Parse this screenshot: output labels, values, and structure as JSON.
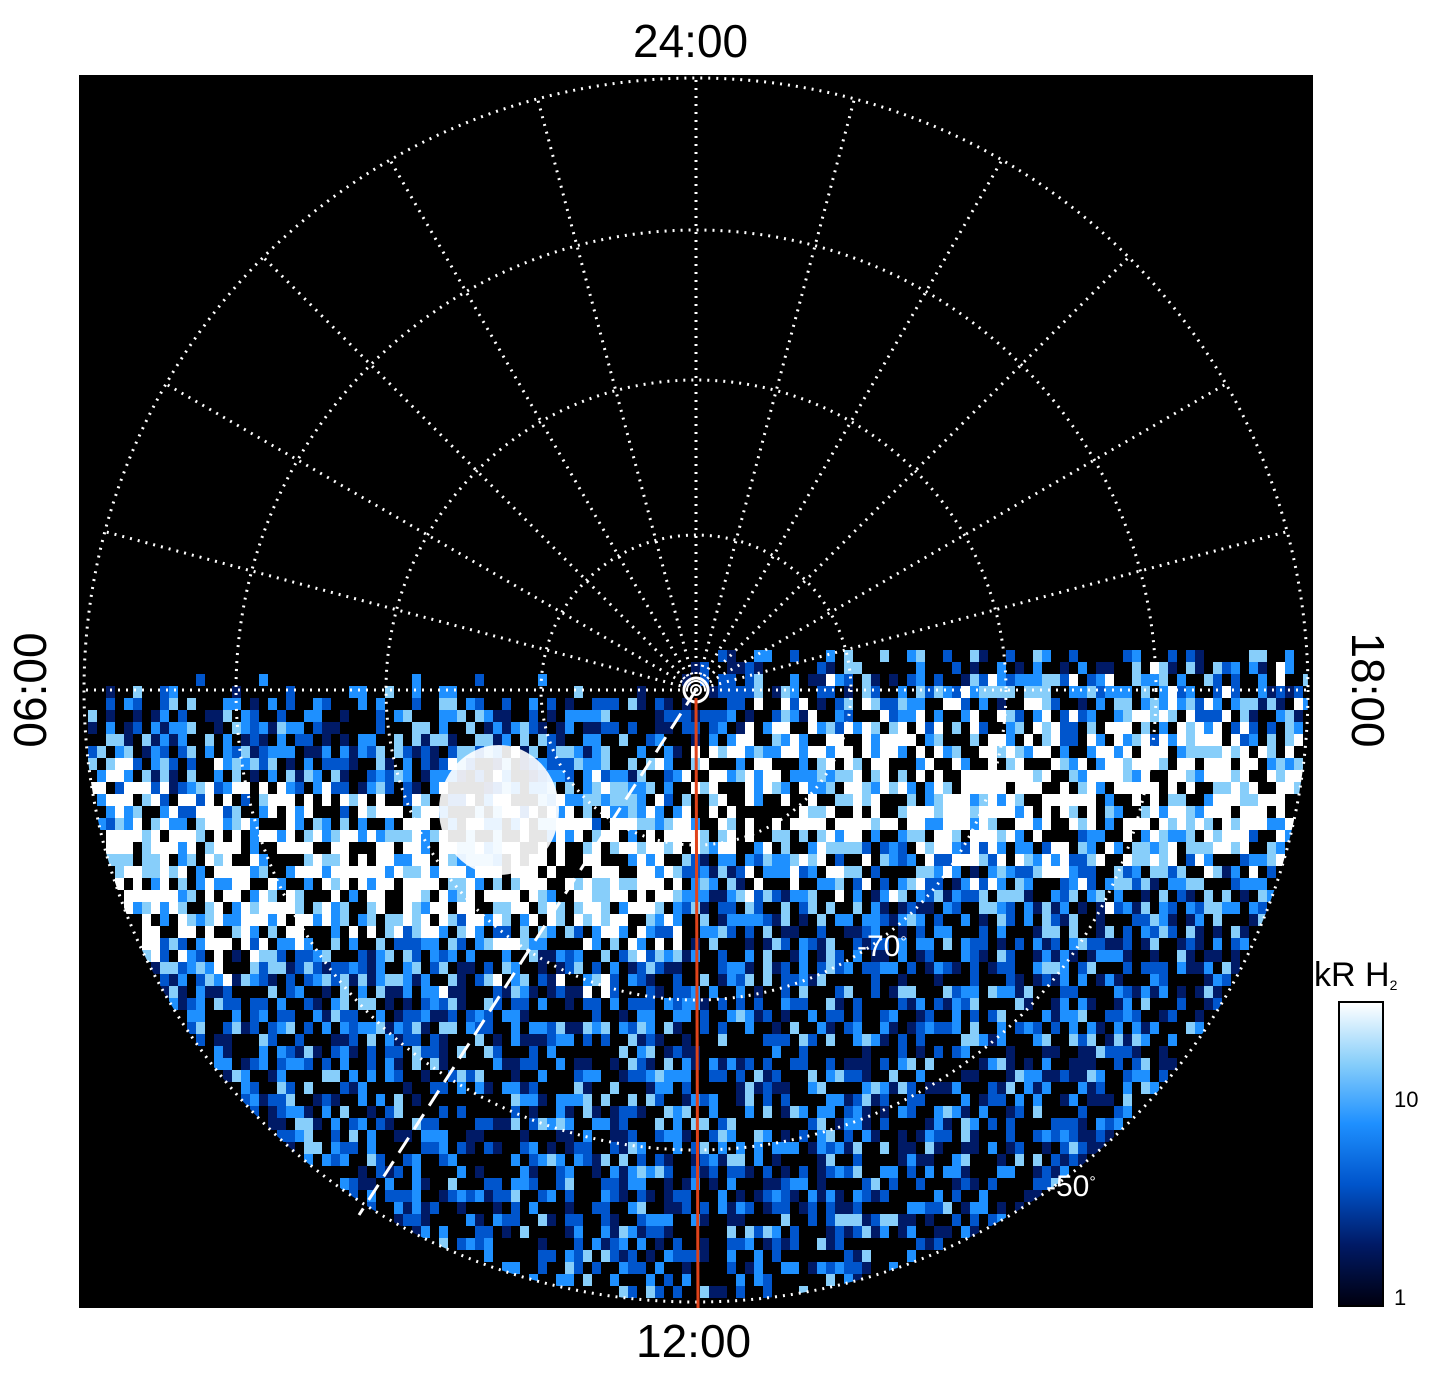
{
  "local_time_labels": {
    "top": "24:00",
    "bottom": "12:00",
    "left": "06:00",
    "right": "18:00"
  },
  "latitude_labels": {
    "inner": "-70",
    "outer": "-50",
    "degree_symbol": "°"
  },
  "colorbar": {
    "unit": "kR H",
    "unit_subscript": "2",
    "ticks": [
      "10",
      "1"
    ],
    "scale": "log",
    "range": [
      1,
      30
    ],
    "colors": [
      "#000010",
      "#001a66",
      "#0055cc",
      "#1e90ff",
      "#87cefa",
      "#ffffff"
    ]
  },
  "overlay": {
    "meridian_line_color": "#e0431a",
    "grid_color": "#ffffff"
  }
}
